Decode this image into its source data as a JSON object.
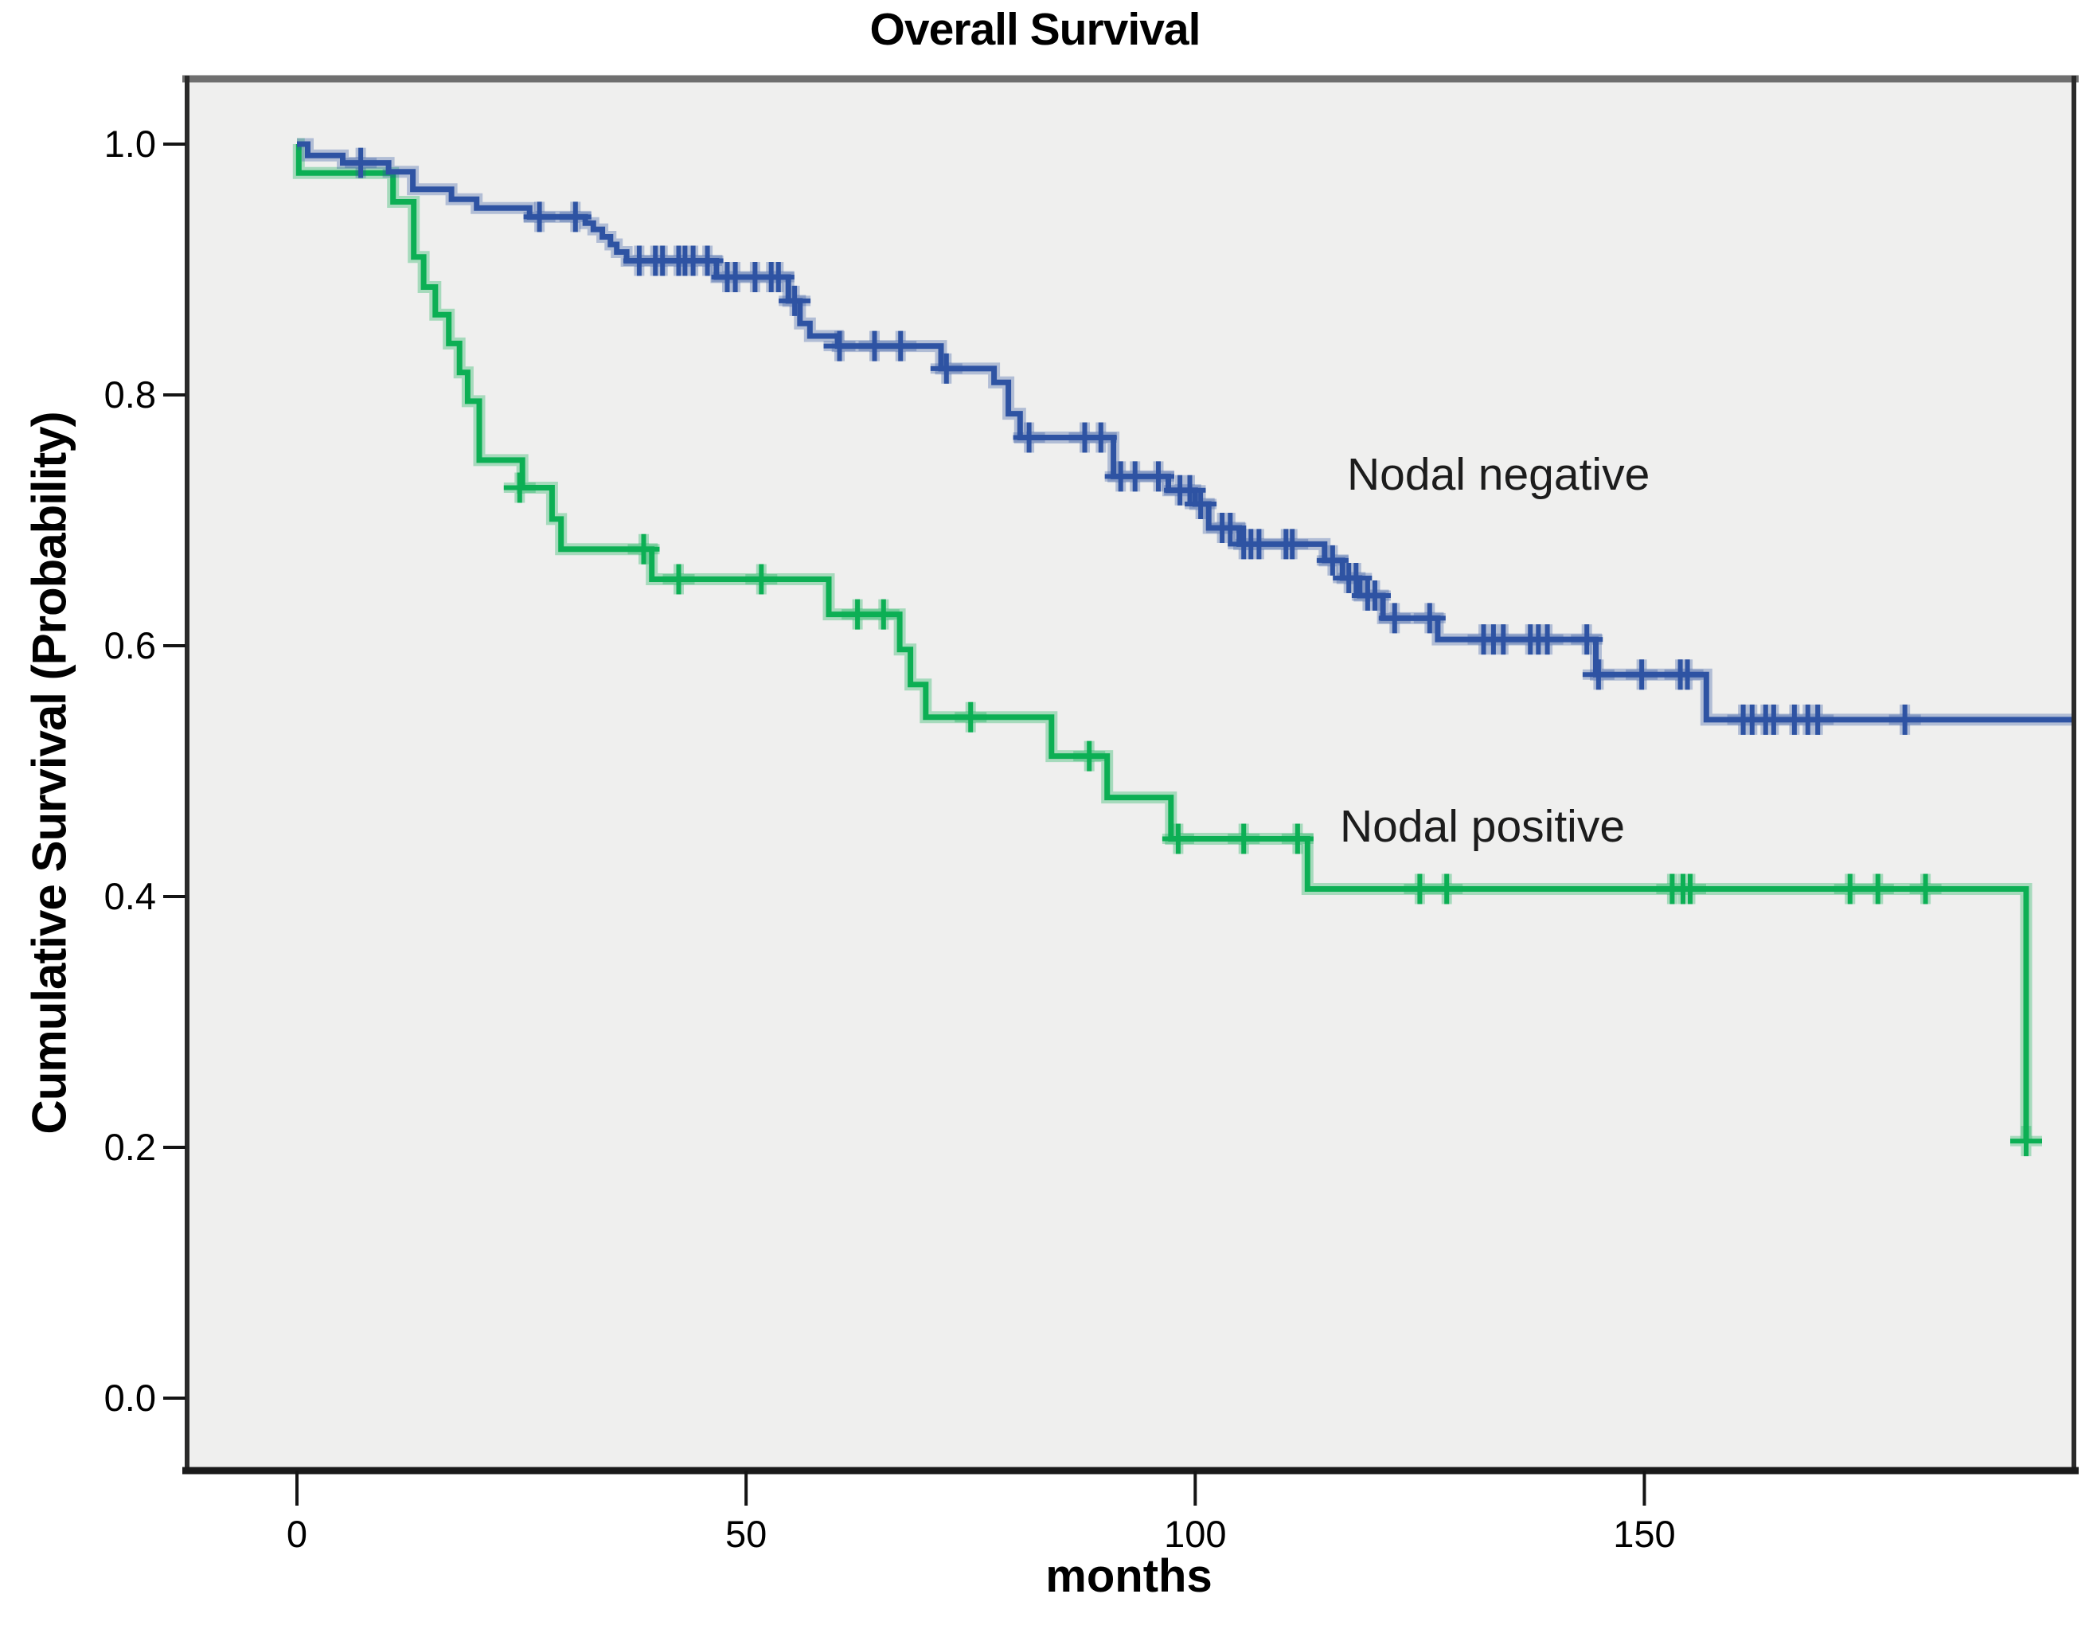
{
  "title": "Overall Survival",
  "x_axis": {
    "label": "months",
    "ticks": [
      {
        "label": "0",
        "value": 0
      },
      {
        "label": "50",
        "value": 50
      },
      {
        "label": "100",
        "value": 100
      },
      {
        "label": "150",
        "value": 150
      }
    ]
  },
  "y_axis": {
    "label": "Cumulative Survival (Probability)",
    "ticks": [
      {
        "label": "1.0",
        "value": 1.0
      },
      {
        "label": "0.8",
        "value": 0.8
      },
      {
        "label": "0.6",
        "value": 0.6
      },
      {
        "label": "0.4",
        "value": 0.4
      },
      {
        "label": "0.2",
        "value": 0.2
      },
      {
        "label": "0.0",
        "value": 0.0
      }
    ]
  },
  "annotations": [
    {
      "text": "Nodal negative",
      "series": "Nodal negative"
    },
    {
      "text": "Nodal positive",
      "series": "Nodal positive"
    }
  ],
  "colors": {
    "plot_background": "#efefee",
    "frame": "#1a1a1a",
    "frame_top": "#6f6f6f",
    "nodal_negative": "#2e53a3",
    "nodal_positive": "#0caf54"
  },
  "chart_data": {
    "type": "line",
    "variant": "kaplan_meier_step",
    "title": "Overall Survival",
    "xlabel": "months",
    "ylabel": "Cumulative Survival (Probability)",
    "xlim": [
      0,
      198
    ],
    "ylim": [
      0,
      1.05
    ],
    "x_ticks": [
      0,
      50,
      100,
      150
    ],
    "y_ticks": [
      0.0,
      0.2,
      0.4,
      0.6,
      0.8,
      1.0
    ],
    "grid": false,
    "legend_position": "inline-annotations",
    "series": [
      {
        "name": "Nodal negative",
        "color": "#2e53a3",
        "end_time": 198,
        "steps": [
          [
            0,
            1.0
          ],
          [
            1.2,
            0.991
          ],
          [
            5.1,
            0.985
          ],
          [
            10.2,
            0.978
          ],
          [
            12.9,
            0.964
          ],
          [
            17.2,
            0.956
          ],
          [
            20,
            0.949
          ],
          [
            25.9,
            0.942
          ],
          [
            32.1,
            0.937
          ],
          [
            33,
            0.932
          ],
          [
            34,
            0.926
          ],
          [
            34.9,
            0.92
          ],
          [
            35.6,
            0.914
          ],
          [
            36.7,
            0.907
          ],
          [
            46.7,
            0.894
          ],
          [
            54.7,
            0.875
          ],
          [
            56,
            0.857
          ],
          [
            57.1,
            0.847
          ],
          [
            60.2,
            0.839
          ],
          [
            71.7,
            0.821
          ],
          [
            77.6,
            0.81
          ],
          [
            79.2,
            0.785
          ],
          [
            80.5,
            0.766
          ],
          [
            90.9,
            0.735
          ],
          [
            97,
            0.724
          ],
          [
            100,
            0.713
          ],
          [
            101.5,
            0.694
          ],
          [
            104.9,
            0.681
          ],
          [
            114.4,
            0.668
          ],
          [
            116.4,
            0.654
          ],
          [
            118.3,
            0.64
          ],
          [
            120.9,
            0.622
          ],
          [
            127,
            0.605
          ],
          [
            144.6,
            0.577
          ],
          [
            156.9,
            0.541
          ]
        ],
        "censor_marks": [
          [
            7.1,
            0.985
          ],
          [
            27,
            0.942
          ],
          [
            31,
            0.942
          ],
          [
            38.1,
            0.907
          ],
          [
            39.9,
            0.907
          ],
          [
            40.7,
            0.907
          ],
          [
            42.5,
            0.907
          ],
          [
            43.2,
            0.907
          ],
          [
            44.1,
            0.907
          ],
          [
            45.7,
            0.907
          ],
          [
            47.9,
            0.894
          ],
          [
            48.8,
            0.894
          ],
          [
            51,
            0.894
          ],
          [
            52.8,
            0.894
          ],
          [
            53.6,
            0.894
          ],
          [
            55.4,
            0.875
          ],
          [
            60.4,
            0.839
          ],
          [
            64.3,
            0.839
          ],
          [
            67.2,
            0.839
          ],
          [
            72.3,
            0.821
          ],
          [
            81.5,
            0.766
          ],
          [
            87.7,
            0.766
          ],
          [
            89.5,
            0.766
          ],
          [
            91.7,
            0.735
          ],
          [
            93.3,
            0.735
          ],
          [
            95.9,
            0.735
          ],
          [
            98.3,
            0.724
          ],
          [
            99.4,
            0.724
          ],
          [
            100.6,
            0.713
          ],
          [
            103,
            0.694
          ],
          [
            103.9,
            0.694
          ],
          [
            105.4,
            0.681
          ],
          [
            106.2,
            0.681
          ],
          [
            107.1,
            0.681
          ],
          [
            110.1,
            0.681
          ],
          [
            110.8,
            0.681
          ],
          [
            115.3,
            0.668
          ],
          [
            117.1,
            0.654
          ],
          [
            117.9,
            0.654
          ],
          [
            119.2,
            0.64
          ],
          [
            120,
            0.64
          ],
          [
            122.2,
            0.622
          ],
          [
            126.1,
            0.622
          ],
          [
            132.1,
            0.605
          ],
          [
            133.2,
            0.605
          ],
          [
            134.3,
            0.605
          ],
          [
            137.3,
            0.605
          ],
          [
            138.2,
            0.605
          ],
          [
            139.2,
            0.605
          ],
          [
            143.6,
            0.605
          ],
          [
            144.9,
            0.577
          ],
          [
            149.7,
            0.577
          ],
          [
            154,
            0.577
          ],
          [
            154.8,
            0.577
          ],
          [
            161,
            0.541
          ],
          [
            162,
            0.541
          ],
          [
            163.5,
            0.541
          ],
          [
            164.4,
            0.541
          ],
          [
            166.7,
            0.541
          ],
          [
            168.2,
            0.541
          ],
          [
            169.3,
            0.541
          ],
          [
            179,
            0.541
          ]
        ]
      },
      {
        "name": "Nodal positive",
        "color": "#0caf54",
        "end_time": 192.5,
        "steps": [
          [
            0,
            1.0
          ],
          [
            0.2,
            0.977
          ],
          [
            10.7,
            0.954
          ],
          [
            13,
            0.91
          ],
          [
            14.1,
            0.886
          ],
          [
            15.4,
            0.864
          ],
          [
            16.9,
            0.841
          ],
          [
            18.1,
            0.818
          ],
          [
            19,
            0.795
          ],
          [
            20.3,
            0.748
          ],
          [
            25.1,
            0.726
          ],
          [
            28.4,
            0.701
          ],
          [
            29.4,
            0.677
          ],
          [
            39.5,
            0.653
          ],
          [
            59.2,
            0.625
          ],
          [
            67.1,
            0.597
          ],
          [
            68.3,
            0.569
          ],
          [
            70,
            0.543
          ],
          [
            84,
            0.512
          ],
          [
            90.2,
            0.479
          ],
          [
            97.3,
            0.446
          ],
          [
            112.5,
            0.406
          ],
          [
            192.5,
            0.205
          ]
        ],
        "censor_marks": [
          [
            24.8,
            0.726
          ],
          [
            38.6,
            0.677
          ],
          [
            42.5,
            0.653
          ],
          [
            51.7,
            0.653
          ],
          [
            62.4,
            0.625
          ],
          [
            65.3,
            0.625
          ],
          [
            75,
            0.543
          ],
          [
            88.2,
            0.512
          ],
          [
            98.1,
            0.446
          ],
          [
            105.4,
            0.446
          ],
          [
            111.4,
            0.446
          ],
          [
            125,
            0.406
          ],
          [
            128,
            0.406
          ],
          [
            153.1,
            0.406
          ],
          [
            154.3,
            0.406
          ],
          [
            155.1,
            0.406
          ],
          [
            172.9,
            0.406
          ],
          [
            176,
            0.406
          ],
          [
            181.3,
            0.406
          ],
          [
            192.5,
            0.205
          ]
        ]
      }
    ]
  }
}
